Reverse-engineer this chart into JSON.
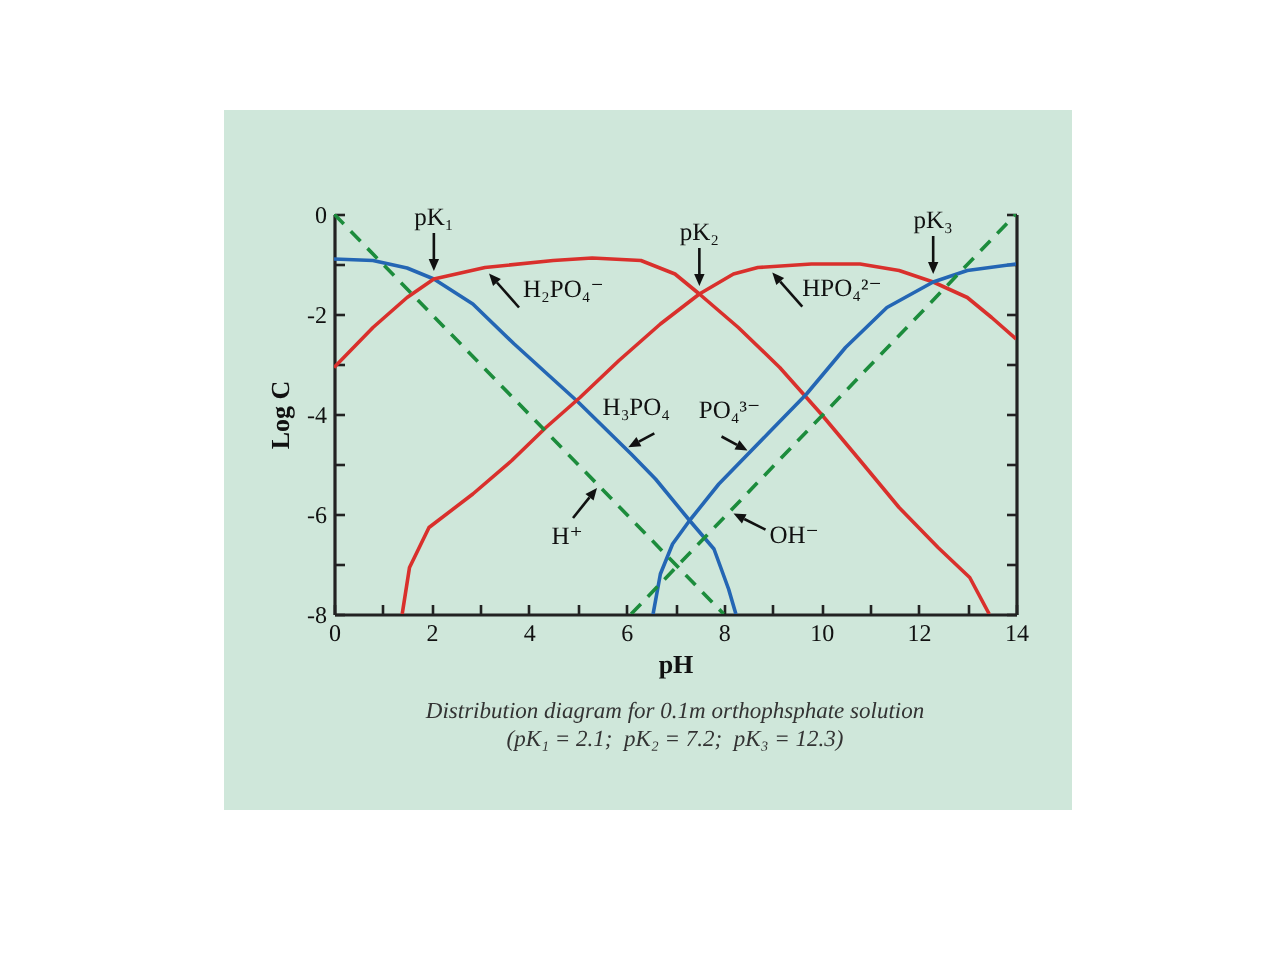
{
  "chart_data": {
    "type": "line",
    "xlabel": "pH",
    "ylabel": "Log C",
    "line_style": "solid",
    "xlim": [
      0,
      14
    ],
    "xticks": [
      0,
      {
        "value": 1,
        "label": null
      },
      2,
      {
        "value": 3,
        "label": null
      },
      4,
      {
        "value": 5,
        "label": null
      },
      6,
      {
        "value": 7,
        "label": null
      },
      8,
      {
        "value": 9,
        "label": null
      },
      10,
      {
        "value": 11,
        "label": null
      },
      12,
      {
        "value": 13,
        "label": null
      },
      14
    ],
    "ylim": [
      -8,
      0
    ],
    "yticks": [
      0,
      {
        "value": -1,
        "label": null
      },
      -2,
      {
        "value": -3,
        "label": null
      },
      -4,
      {
        "value": -5,
        "label": null
      },
      -6,
      {
        "value": -7,
        "label": null
      },
      -8
    ],
    "series": [
      {
        "name": "H₃PO₄",
        "color": "#2466b4",
        "x": [
          0,
          0.8,
          1.5,
          2.05,
          2.85,
          3.7,
          5.0,
          6.1,
          6.6,
          7.3,
          7.8,
          8.1,
          8.25
        ],
        "values": [
          -0.9,
          -0.93,
          -1.08,
          -1.3,
          -1.8,
          -2.6,
          -3.75,
          -4.8,
          -5.3,
          -6.13,
          -6.7,
          -7.5,
          -8
        ]
      },
      {
        "name": "H₂PO₄⁻",
        "color": "#d9302c",
        "x": [
          0,
          0.8,
          1.5,
          2.05,
          3.1,
          4.5,
          5.3,
          6.3,
          7.0,
          7.5,
          8.3,
          9.15,
          10.0,
          10.8,
          11.6,
          12.4,
          13.05,
          13.45
        ],
        "values": [
          -3.07,
          -2.27,
          -1.67,
          -1.3,
          -1.07,
          -0.93,
          -0.88,
          -0.93,
          -1.2,
          -1.6,
          -2.27,
          -3.07,
          -4.0,
          -4.93,
          -5.87,
          -6.67,
          -7.27,
          -8
        ]
      },
      {
        "name": "HPO₄²⁻",
        "color": "#d9302c",
        "x": [
          1.4,
          1.55,
          1.95,
          2.85,
          3.65,
          4.35,
          5.05,
          5.85,
          6.7,
          7.5,
          8.2,
          8.7,
          9.8,
          10.8,
          11.6,
          12.3,
          13.0,
          13.5,
          14
        ],
        "values": [
          -8,
          -7.07,
          -6.27,
          -5.6,
          -4.93,
          -4.27,
          -3.67,
          -2.93,
          -2.2,
          -1.6,
          -1.2,
          -1.07,
          -1.0,
          -1.0,
          -1.13,
          -1.36,
          -1.67,
          -2.07,
          -2.5
        ]
      },
      {
        "name": "PO₄³⁻",
        "color": "#2466b4",
        "x": [
          6.55,
          6.7,
          6.95,
          7.3,
          7.9,
          8.9,
          9.7,
          10.5,
          11.35,
          12.3,
          13.0,
          14
        ],
        "values": [
          -8,
          -7.2,
          -6.6,
          -6.13,
          -5.4,
          -4.4,
          -3.6,
          -2.67,
          -1.87,
          -1.36,
          -1.13,
          -1.0
        ]
      },
      {
        "name": "H⁺",
        "color": "#1c8c3c",
        "line_style": "dashed",
        "x": [
          0,
          8
        ],
        "values": [
          0,
          -8
        ]
      },
      {
        "name": "OH⁻",
        "color": "#1c8c3c",
        "line_style": "dashed",
        "x": [
          6.1,
          14
        ],
        "values": [
          -8,
          0
        ]
      }
    ],
    "annotations": [
      {
        "text": "pK₁",
        "x": 2.05,
        "y": -1.3
      },
      {
        "text": "pK₂",
        "x": 7.5,
        "y": -1.6
      },
      {
        "text": "pK₃",
        "x": 12.3,
        "y": -1.36
      },
      "Distribution diagram for 0.1m orthophsphate solution",
      "(pK₁ = 2.1;  pK₂ = 7.2;  pK₃ = 12.3)"
    ]
  }
}
